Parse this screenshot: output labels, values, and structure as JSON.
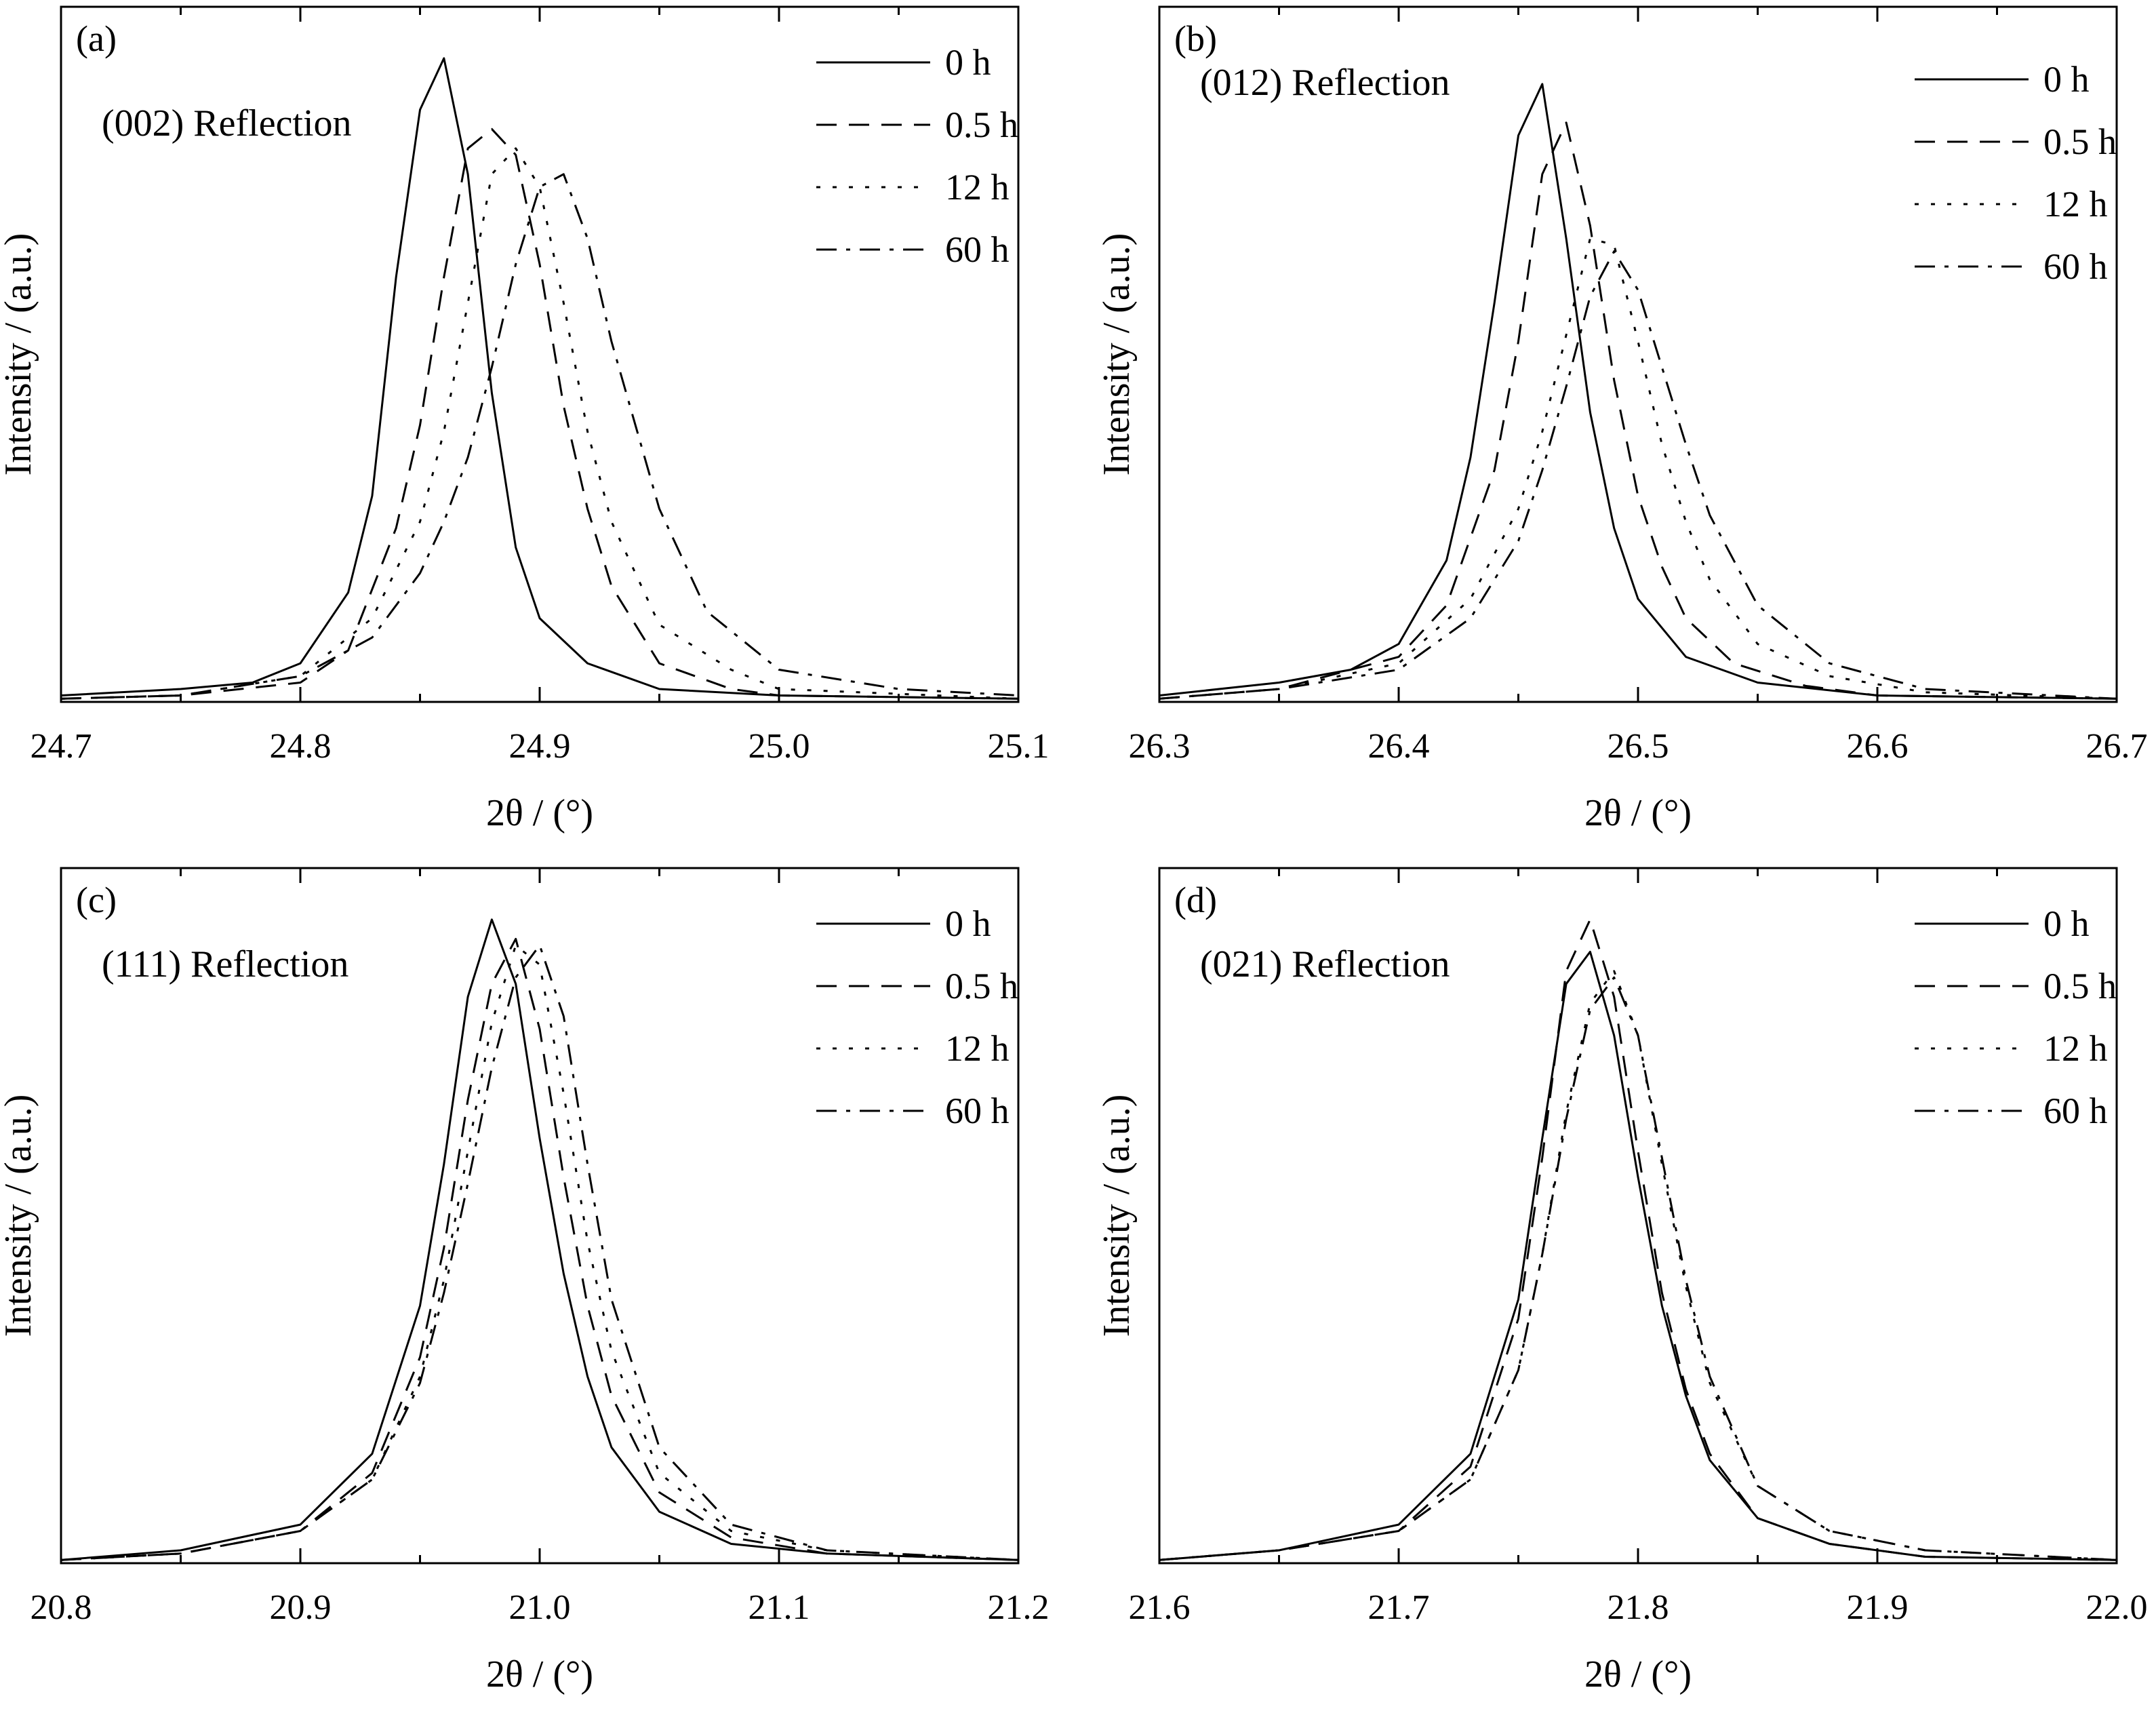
{
  "chart_data": [
    {
      "type": "line",
      "panel_label": "(a)",
      "title": "(002) Reflection",
      "xlabel": "2θ / (°)",
      "ylabel": "Intensity / (a.u.)",
      "xlim": [
        24.7,
        25.1
      ],
      "xticks": [
        "24.7",
        "24.8",
        "24.9",
        "25.0",
        "25.1"
      ],
      "ylim": [
        0,
        1.08
      ],
      "legend_position": "top-right",
      "series": [
        {
          "name": "0 h",
          "dash": "solid",
          "x": [
            24.7,
            24.75,
            24.78,
            24.8,
            24.82,
            24.83,
            24.84,
            24.85,
            24.86,
            24.87,
            24.88,
            24.89,
            24.9,
            24.92,
            24.95,
            25.0,
            25.1
          ],
          "y": [
            0.01,
            0.02,
            0.03,
            0.06,
            0.17,
            0.32,
            0.66,
            0.92,
            1.0,
            0.82,
            0.48,
            0.24,
            0.13,
            0.06,
            0.02,
            0.01,
            0.005
          ]
        },
        {
          "name": "0.5 h",
          "dash": "dashed",
          "x": [
            24.7,
            24.75,
            24.8,
            24.82,
            24.84,
            24.85,
            24.86,
            24.87,
            24.88,
            24.89,
            24.9,
            24.91,
            24.92,
            24.93,
            24.95,
            24.98,
            25.0,
            25.1
          ],
          "y": [
            0.005,
            0.01,
            0.03,
            0.08,
            0.27,
            0.43,
            0.66,
            0.86,
            0.89,
            0.85,
            0.68,
            0.46,
            0.3,
            0.18,
            0.06,
            0.02,
            0.01,
            0.005
          ]
        },
        {
          "name": "12 h",
          "dash": "dotted",
          "x": [
            24.7,
            24.75,
            24.8,
            24.83,
            24.85,
            24.86,
            24.87,
            24.88,
            24.89,
            24.9,
            24.91,
            24.92,
            24.93,
            24.95,
            24.98,
            25.0,
            25.1
          ],
          "y": [
            0.005,
            0.01,
            0.04,
            0.13,
            0.28,
            0.42,
            0.62,
            0.82,
            0.86,
            0.8,
            0.62,
            0.42,
            0.28,
            0.12,
            0.05,
            0.02,
            0.005
          ]
        },
        {
          "name": "60 h",
          "dash": "dashdot",
          "x": [
            24.7,
            24.75,
            24.8,
            24.83,
            24.85,
            24.86,
            24.87,
            24.88,
            24.89,
            24.9,
            24.91,
            24.92,
            24.93,
            24.95,
            24.97,
            25.0,
            25.05,
            25.1
          ],
          "y": [
            0.005,
            0.01,
            0.04,
            0.1,
            0.2,
            0.28,
            0.38,
            0.52,
            0.68,
            0.8,
            0.82,
            0.72,
            0.56,
            0.3,
            0.14,
            0.05,
            0.02,
            0.01
          ]
        }
      ]
    },
    {
      "type": "line",
      "panel_label": "(b)",
      "title": "(012) Reflection",
      "xlabel": "2θ / (°)",
      "ylabel": "Intensity / (a.u.)",
      "xlim": [
        26.3,
        26.7
      ],
      "xticks": [
        "26.3",
        "26.4",
        "26.5",
        "26.6",
        "26.7"
      ],
      "ylim": [
        0,
        1.08
      ],
      "legend_position": "top-right",
      "series": [
        {
          "name": "0 h",
          "dash": "solid",
          "x": [
            26.3,
            26.35,
            26.38,
            26.4,
            26.42,
            26.43,
            26.44,
            26.45,
            26.46,
            26.47,
            26.48,
            26.49,
            26.5,
            26.52,
            26.55,
            26.6,
            26.7
          ],
          "y": [
            0.01,
            0.03,
            0.05,
            0.09,
            0.22,
            0.38,
            0.62,
            0.88,
            0.96,
            0.72,
            0.45,
            0.27,
            0.16,
            0.07,
            0.03,
            0.01,
            0.005
          ]
        },
        {
          "name": "0.5 h",
          "dash": "dashed",
          "x": [
            26.3,
            26.35,
            26.4,
            26.42,
            26.44,
            26.45,
            26.46,
            26.47,
            26.48,
            26.49,
            26.5,
            26.51,
            26.52,
            26.54,
            26.57,
            26.6,
            26.7
          ],
          "y": [
            0.005,
            0.02,
            0.07,
            0.15,
            0.36,
            0.56,
            0.82,
            0.9,
            0.74,
            0.5,
            0.32,
            0.21,
            0.13,
            0.06,
            0.025,
            0.01,
            0.005
          ]
        },
        {
          "name": "12 h",
          "dash": "dotted",
          "x": [
            26.3,
            26.35,
            26.4,
            26.43,
            26.45,
            26.46,
            26.47,
            26.48,
            26.49,
            26.5,
            26.51,
            26.52,
            26.53,
            26.55,
            26.58,
            26.62,
            26.7
          ],
          "y": [
            0.005,
            0.02,
            0.06,
            0.16,
            0.3,
            0.42,
            0.57,
            0.72,
            0.71,
            0.56,
            0.4,
            0.28,
            0.19,
            0.09,
            0.04,
            0.015,
            0.005
          ]
        },
        {
          "name": "60 h",
          "dash": "dashdot",
          "x": [
            26.3,
            26.35,
            26.4,
            26.43,
            26.45,
            26.46,
            26.47,
            26.48,
            26.49,
            26.5,
            26.51,
            26.52,
            26.53,
            26.55,
            26.58,
            26.62,
            26.7
          ],
          "y": [
            0.005,
            0.02,
            0.05,
            0.13,
            0.25,
            0.36,
            0.49,
            0.63,
            0.7,
            0.64,
            0.52,
            0.4,
            0.29,
            0.15,
            0.06,
            0.02,
            0.005
          ]
        }
      ]
    },
    {
      "type": "line",
      "panel_label": "(c)",
      "title": "(111) Reflection",
      "xlabel": "2θ / (°)",
      "ylabel": "Intensity / (a.u.)",
      "xlim": [
        20.8,
        21.2
      ],
      "xticks": [
        "20.8",
        "20.9",
        "21.0",
        "21.1",
        "21.2"
      ],
      "ylim": [
        0,
        1.08
      ],
      "legend_position": "top-right",
      "series": [
        {
          "name": "0 h",
          "dash": "solid",
          "x": [
            20.8,
            20.85,
            20.9,
            20.93,
            20.95,
            20.96,
            20.97,
            20.98,
            20.99,
            21.0,
            21.01,
            21.02,
            21.03,
            21.05,
            21.08,
            21.12,
            21.2
          ],
          "y": [
            0.005,
            0.02,
            0.06,
            0.17,
            0.4,
            0.62,
            0.88,
            1.0,
            0.9,
            0.66,
            0.45,
            0.29,
            0.18,
            0.08,
            0.03,
            0.015,
            0.005
          ]
        },
        {
          "name": "0.5 h",
          "dash": "dashed",
          "x": [
            20.8,
            20.85,
            20.9,
            20.93,
            20.95,
            20.96,
            20.97,
            20.98,
            20.99,
            21.0,
            21.01,
            21.02,
            21.03,
            21.05,
            21.08,
            21.12,
            21.2
          ],
          "y": [
            0.005,
            0.015,
            0.05,
            0.14,
            0.32,
            0.49,
            0.72,
            0.9,
            0.97,
            0.83,
            0.6,
            0.4,
            0.26,
            0.11,
            0.04,
            0.015,
            0.005
          ]
        },
        {
          "name": "12 h",
          "dash": "dotted",
          "x": [
            20.8,
            20.85,
            20.9,
            20.93,
            20.95,
            20.96,
            20.97,
            20.98,
            20.99,
            21.0,
            21.01,
            21.02,
            21.03,
            21.05,
            21.08,
            21.12,
            21.2
          ],
          "y": [
            0.005,
            0.015,
            0.05,
            0.13,
            0.29,
            0.44,
            0.64,
            0.84,
            0.96,
            0.93,
            0.73,
            0.5,
            0.33,
            0.14,
            0.05,
            0.02,
            0.005
          ]
        },
        {
          "name": "60 h",
          "dash": "dashdot",
          "x": [
            20.8,
            20.85,
            20.9,
            20.93,
            20.95,
            20.96,
            20.97,
            20.98,
            20.99,
            21.0,
            21.01,
            21.02,
            21.03,
            21.05,
            21.08,
            21.12,
            21.2
          ],
          "y": [
            0.005,
            0.015,
            0.05,
            0.13,
            0.28,
            0.42,
            0.59,
            0.77,
            0.91,
            0.96,
            0.85,
            0.62,
            0.41,
            0.18,
            0.06,
            0.02,
            0.005
          ]
        }
      ]
    },
    {
      "type": "line",
      "panel_label": "(d)",
      "title": "(021) Reflection",
      "xlabel": "2θ / (°)",
      "ylabel": "Intensity / (a.u.)",
      "xlim": [
        21.6,
        22.0
      ],
      "xticks": [
        "21.6",
        "21.7",
        "21.8",
        "21.9",
        "22.0"
      ],
      "ylim": [
        0,
        1.08
      ],
      "legend_position": "top-right",
      "series": [
        {
          "name": "0 h",
          "dash": "solid",
          "x": [
            21.6,
            21.65,
            21.7,
            21.73,
            21.75,
            21.76,
            21.77,
            21.78,
            21.79,
            21.8,
            21.81,
            21.82,
            21.83,
            21.85,
            21.88,
            21.92,
            22.0
          ],
          "y": [
            0.005,
            0.02,
            0.06,
            0.17,
            0.41,
            0.66,
            0.9,
            0.95,
            0.82,
            0.6,
            0.4,
            0.26,
            0.16,
            0.07,
            0.03,
            0.01,
            0.005
          ]
        },
        {
          "name": "0.5 h",
          "dash": "dashed",
          "x": [
            21.6,
            21.65,
            21.7,
            21.73,
            21.75,
            21.76,
            21.77,
            21.78,
            21.79,
            21.8,
            21.81,
            21.82,
            21.83,
            21.85,
            21.88,
            21.92,
            22.0
          ],
          "y": [
            0.005,
            0.02,
            0.05,
            0.15,
            0.38,
            0.63,
            0.92,
            1.0,
            0.88,
            0.64,
            0.42,
            0.27,
            0.17,
            0.07,
            0.03,
            0.01,
            0.005
          ]
        },
        {
          "name": "12 h",
          "dash": "dotted",
          "x": [
            21.6,
            21.65,
            21.7,
            21.73,
            21.75,
            21.76,
            21.77,
            21.78,
            21.79,
            21.8,
            21.81,
            21.82,
            21.83,
            21.85,
            21.88,
            21.92,
            22.0
          ],
          "y": [
            0.005,
            0.02,
            0.05,
            0.13,
            0.3,
            0.48,
            0.7,
            0.87,
            0.92,
            0.82,
            0.62,
            0.43,
            0.28,
            0.12,
            0.05,
            0.02,
            0.005
          ]
        },
        {
          "name": "60 h",
          "dash": "dashdot",
          "x": [
            21.6,
            21.65,
            21.7,
            21.73,
            21.75,
            21.76,
            21.77,
            21.78,
            21.79,
            21.8,
            21.81,
            21.82,
            21.83,
            21.85,
            21.88,
            21.92,
            22.0
          ],
          "y": [
            0.005,
            0.02,
            0.05,
            0.13,
            0.3,
            0.48,
            0.69,
            0.86,
            0.91,
            0.82,
            0.63,
            0.44,
            0.29,
            0.12,
            0.05,
            0.02,
            0.005
          ]
        }
      ]
    }
  ]
}
